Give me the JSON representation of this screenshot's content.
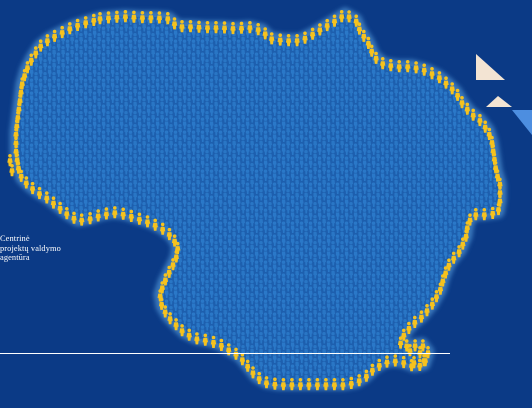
{
  "brand": {
    "agency_name_lines": [
      "Centrinė",
      "projektų valdymo",
      "agentūra"
    ]
  },
  "map": {
    "subject": "map of Lithuania composed of person icons",
    "icon": "person-icon"
  },
  "decor": {
    "shapes": [
      "triangle-cream-icon",
      "triangle-cream-small-icon",
      "triangle-light-blue-icon"
    ]
  },
  "colors": {
    "background": "#0b3a86",
    "interior_person": "#2a78c8",
    "border_person": "#f6c21e",
    "border_glow": "#5ea8e6",
    "cream": "#f3e4d3",
    "light_blue": "#4d8ee0",
    "rule": "#ffffff"
  }
}
